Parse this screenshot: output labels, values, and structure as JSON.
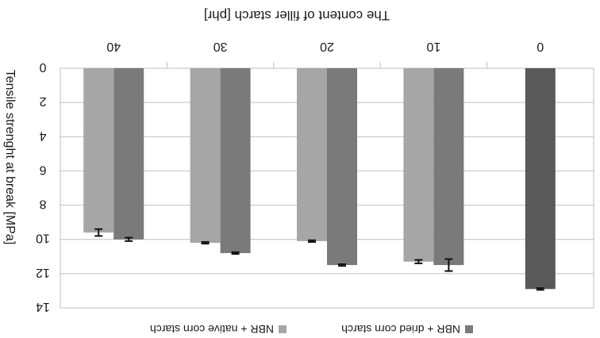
{
  "chart_data": {
    "type": "bar",
    "orientation": "rendered upside-down (image rotated 180 degrees)",
    "title": "The content of filler starch  [phr]",
    "xlabel": "The content of filler starch  [phr]",
    "ylabel": "Tensile strenght at break [MPa]",
    "categories": [
      "0",
      "10",
      "20",
      "30",
      "40"
    ],
    "yticks": [
      "0",
      "2",
      "4",
      "6",
      "8",
      "10",
      "12",
      "14"
    ],
    "ylim": [
      0,
      14
    ],
    "grid": true,
    "legend_position": "bottom",
    "series": [
      {
        "name": "NBR + native corn starch",
        "color": "#a6a6a6",
        "values": [
          null,
          11.3,
          10.1,
          10.2,
          9.6
        ],
        "errors": [
          null,
          0.1,
          0.05,
          0.05,
          0.2
        ]
      },
      {
        "name": "NBR + dried corn starch",
        "color": "#7a7a7a",
        "values": [
          12.9,
          11.5,
          11.5,
          10.8,
          10.0
        ],
        "errors": [
          0.05,
          0.35,
          0.05,
          0.05,
          0.1
        ]
      }
    ],
    "single_bar_color": "#595959"
  }
}
